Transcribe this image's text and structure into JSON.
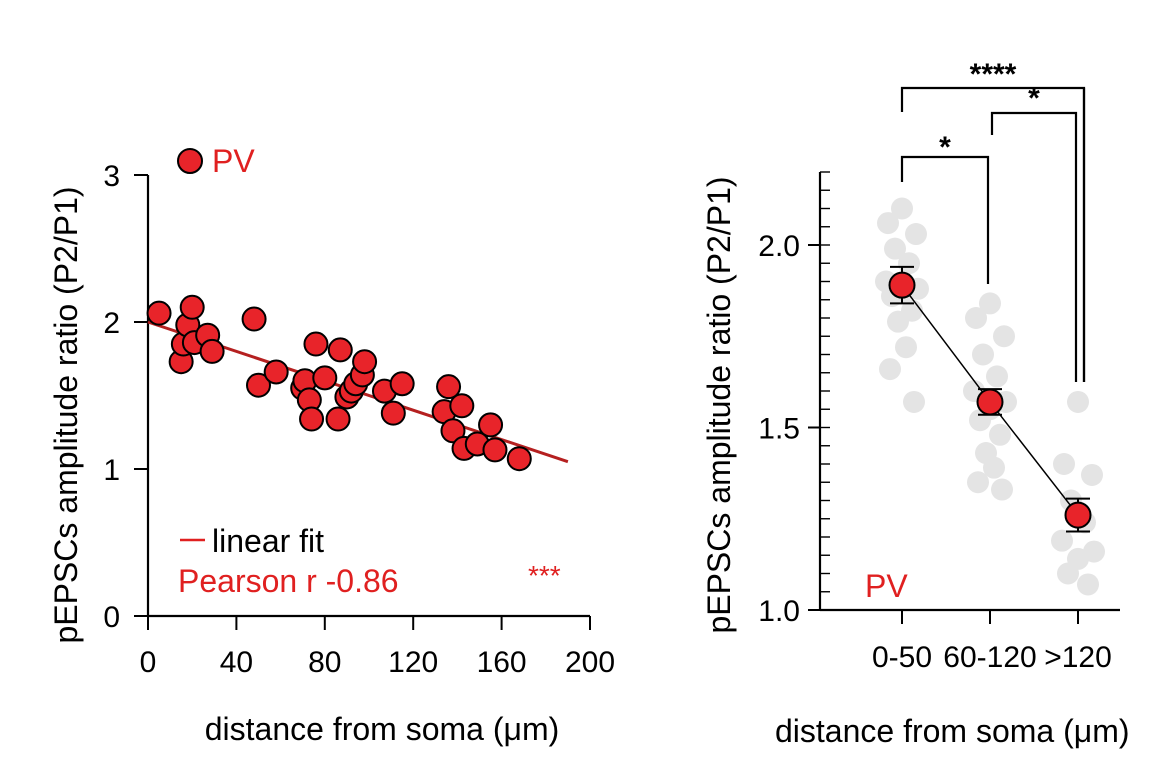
{
  "colors": {
    "red": "#e8242a",
    "red_text": "#e02020",
    "grey": "#e4e4e4",
    "black": "#000000"
  },
  "chart_data": [
    {
      "type": "scatter",
      "legend": {
        "marker_label": "PV",
        "fit_label": "linear fit",
        "pearson_label": "Pearson r -0.86",
        "significance": "***"
      },
      "xlabel": "distance from soma (μm)",
      "ylabel": "pEPSCs amplitude ratio (P2/P1)",
      "xlim": [
        0,
        200
      ],
      "ylim": [
        0,
        3
      ],
      "xticks": [
        0,
        40,
        80,
        120,
        160,
        200
      ],
      "xtick_labels": [
        "0",
        "40",
        "80",
        "120",
        "160",
        "200"
      ],
      "yticks": [
        0,
        1,
        2,
        3
      ],
      "ytick_labels": [
        "0",
        "1",
        "2",
        "3"
      ],
      "fit": {
        "x": [
          0,
          190
        ],
        "y": [
          2.0,
          1.05
        ]
      },
      "points": [
        {
          "x": 5,
          "y": 2.06
        },
        {
          "x": 15,
          "y": 1.73
        },
        {
          "x": 16,
          "y": 1.85
        },
        {
          "x": 18,
          "y": 1.98
        },
        {
          "x": 20,
          "y": 2.1
        },
        {
          "x": 21,
          "y": 1.86
        },
        {
          "x": 27,
          "y": 1.91
        },
        {
          "x": 29,
          "y": 1.8
        },
        {
          "x": 48,
          "y": 2.02
        },
        {
          "x": 50,
          "y": 1.57
        },
        {
          "x": 58,
          "y": 1.66
        },
        {
          "x": 70,
          "y": 1.55
        },
        {
          "x": 71,
          "y": 1.6
        },
        {
          "x": 73,
          "y": 1.47
        },
        {
          "x": 74,
          "y": 1.34
        },
        {
          "x": 76,
          "y": 1.85
        },
        {
          "x": 80,
          "y": 1.62
        },
        {
          "x": 86,
          "y": 1.34
        },
        {
          "x": 87,
          "y": 1.81
        },
        {
          "x": 90,
          "y": 1.49
        },
        {
          "x": 92,
          "y": 1.53
        },
        {
          "x": 94,
          "y": 1.58
        },
        {
          "x": 97,
          "y": 1.64
        },
        {
          "x": 98,
          "y": 1.73
        },
        {
          "x": 107,
          "y": 1.53
        },
        {
          "x": 111,
          "y": 1.38
        },
        {
          "x": 115,
          "y": 1.58
        },
        {
          "x": 134,
          "y": 1.39
        },
        {
          "x": 136,
          "y": 1.56
        },
        {
          "x": 138,
          "y": 1.26
        },
        {
          "x": 142,
          "y": 1.43
        },
        {
          "x": 143,
          "y": 1.14
        },
        {
          "x": 149,
          "y": 1.17
        },
        {
          "x": 155,
          "y": 1.3
        },
        {
          "x": 157,
          "y": 1.13
        },
        {
          "x": 168,
          "y": 1.07
        }
      ]
    },
    {
      "type": "dot-summary",
      "panel_label": "PV",
      "xlabel": "distance from soma (μm)",
      "ylabel": "pEPSCs amplitude ratio (P2/P1)",
      "categories": [
        "0-50",
        "60-120",
        ">120"
      ],
      "ylim": [
        1.0,
        2.2
      ],
      "yticks": [
        1.0,
        1.5,
        2.0
      ],
      "ytick_labels": [
        "1.0",
        "1.5",
        "2.0"
      ],
      "means": [
        1.89,
        1.57,
        1.26
      ],
      "errors": [
        0.05,
        0.035,
        0.045
      ],
      "individual": [
        [
          2.1,
          2.06,
          2.03,
          1.99,
          1.95,
          1.9,
          1.88,
          1.87,
          1.86,
          1.82,
          1.79,
          1.72,
          1.66,
          1.57
        ],
        [
          1.84,
          1.8,
          1.75,
          1.7,
          1.64,
          1.6,
          1.57,
          1.55,
          1.52,
          1.48,
          1.43,
          1.39,
          1.35,
          1.33
        ],
        [
          1.57,
          1.4,
          1.37,
          1.3,
          1.24,
          1.19,
          1.16,
          1.14,
          1.1,
          1.07
        ]
      ],
      "comparisons": [
        {
          "from": 0,
          "to": 2,
          "label": "****"
        },
        {
          "from": 1,
          "to": 2,
          "label": "*"
        },
        {
          "from": 0,
          "to": 1,
          "label": "*"
        }
      ]
    }
  ]
}
